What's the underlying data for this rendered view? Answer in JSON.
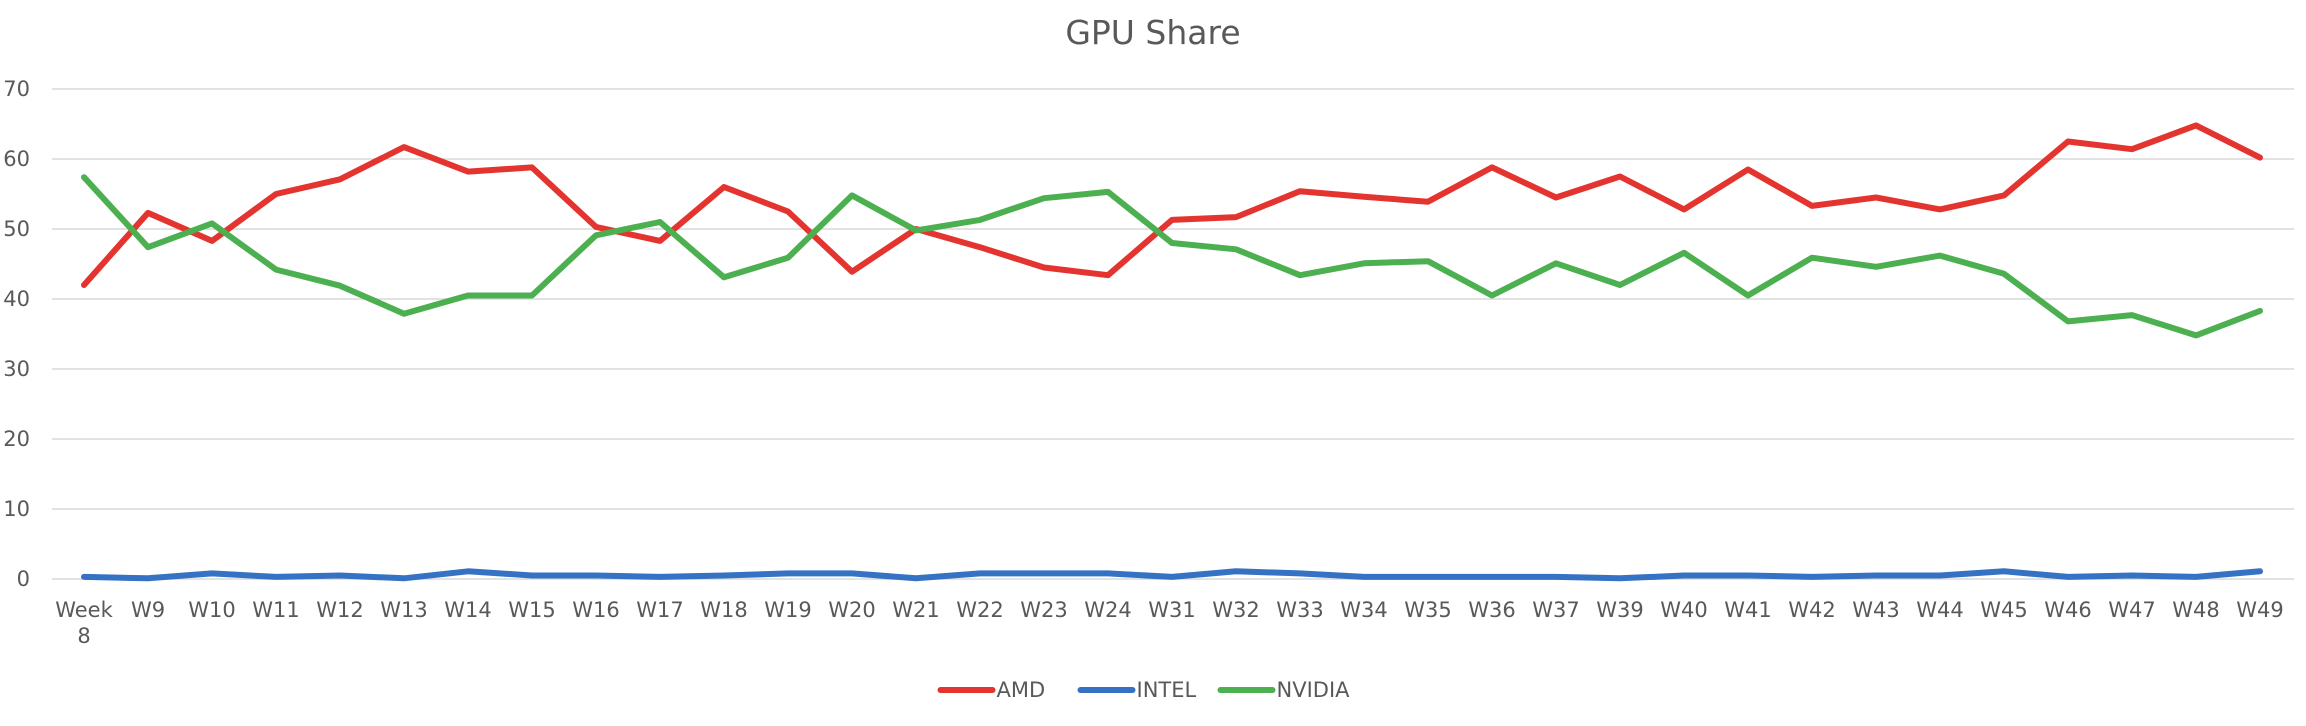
{
  "chart_data": {
    "type": "line",
    "title": "GPU Share",
    "xlabel": "",
    "ylabel": "",
    "ylim": [
      0,
      70
    ],
    "yticks": [
      "0",
      "10",
      "20",
      "30",
      "40",
      "50",
      "60",
      "70"
    ],
    "grid": true,
    "legend_position": "bottom",
    "categories": [
      "Week 8",
      "W9",
      "W10",
      "W11",
      "W12",
      "W13",
      "W14",
      "W15",
      "W16",
      "W17",
      "W18",
      "W19",
      "W20",
      "W21",
      "W22",
      "W23",
      "W24",
      "W31",
      "W32",
      "W33",
      "W34",
      "W35",
      "W36",
      "W37",
      "W39",
      "W40",
      "W41",
      "W42",
      "W43",
      "W44",
      "W45",
      "W46",
      "W47",
      "W48",
      "W49"
    ],
    "series": [
      {
        "name": "AMD",
        "color": "#e3342f",
        "values": [
          42,
          52.3,
          48.3,
          55,
          57.1,
          61.7,
          58.2,
          58.8,
          50.3,
          48.3,
          56,
          52.5,
          43.9,
          50,
          47.4,
          44.5,
          43.4,
          51.3,
          51.7,
          55.4,
          54.6,
          53.9,
          58.8,
          54.5,
          57.5,
          52.8,
          58.5,
          53.3,
          54.5,
          52.8,
          54.8,
          62.5,
          61.4,
          64.8,
          60.2
        ]
      },
      {
        "name": "INTEL",
        "color": "#3572c4",
        "values": [
          0.3,
          0.1,
          0.8,
          0.3,
          0.5,
          0.1,
          1.1,
          0.5,
          0.5,
          0.3,
          0.5,
          0.8,
          0.8,
          0.1,
          0.8,
          0.8,
          0.8,
          0.3,
          1.1,
          0.8,
          0.3,
          0.3,
          0.3,
          0.3,
          0.1,
          0.5,
          0.5,
          0.3,
          0.5,
          0.5,
          1.1,
          0.3,
          0.5,
          0.3,
          1.1
        ]
      },
      {
        "name": "NVIDIA",
        "color": "#4caf50",
        "values": [
          57.4,
          47.4,
          50.8,
          44.2,
          41.9,
          37.9,
          40.5,
          40.5,
          49.1,
          51,
          43.1,
          45.9,
          54.8,
          49.8,
          51.3,
          54.4,
          55.3,
          48,
          47.1,
          43.4,
          45.1,
          45.4,
          40.5,
          45.1,
          42,
          46.6,
          40.5,
          45.9,
          44.6,
          46.2,
          43.6,
          36.8,
          37.7,
          34.8,
          38.3
        ]
      }
    ]
  }
}
